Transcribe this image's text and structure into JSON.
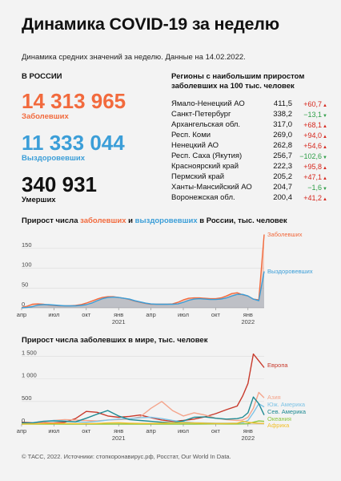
{
  "title": "Динамика COVID-19 за неделю",
  "subtitle": "Динамика средних значений за неделю. Данные на 14.02.2022.",
  "russia": {
    "header": "В РОССИИ",
    "infected_value": "14 313 965",
    "infected_label": "Заболевших",
    "recovered_value": "11 333 044",
    "recovered_label": "Выздоровевших",
    "deaths_value": "340 931",
    "deaths_label": "Умерших"
  },
  "regions": {
    "header_line1": "Регионы с наибольшим приростом",
    "header_line2": "заболевших на 100 тыс. человек",
    "rows": [
      {
        "name": "Ямало-Ненецкий АО",
        "value": "411,5",
        "delta": "+60,7",
        "dir": "up"
      },
      {
        "name": "Санкт-Петербург",
        "value": "338,2",
        "delta": "−13,1",
        "dir": "down"
      },
      {
        "name": "Архангельская обл.",
        "value": "317,0",
        "delta": "+68,1",
        "dir": "up"
      },
      {
        "name": "Респ. Коми",
        "value": "269,0",
        "delta": "+94,0",
        "dir": "up"
      },
      {
        "name": "Ненецкий АО",
        "value": "262,8",
        "delta": "+54,6",
        "dir": "up"
      },
      {
        "name": "Респ. Саха (Якутия)",
        "value": "256,7",
        "delta": "−102,6",
        "dir": "down"
      },
      {
        "name": "Красноярский край",
        "value": "222,3",
        "delta": "+95,8",
        "dir": "up"
      },
      {
        "name": "Пермский край",
        "value": "205,2",
        "delta": "+47,1",
        "dir": "up"
      },
      {
        "name": "Ханты-Мансийский АО",
        "value": "204,7",
        "delta": "−1,6",
        "dir": "down"
      },
      {
        "name": "Воронежская обл.",
        "value": "200,4",
        "delta": "+41,2",
        "dir": "up"
      }
    ]
  },
  "chart1_title": {
    "part1": "Прирост числа ",
    "part2": "заболевших",
    "part3": " и ",
    "part4": "выздоровевших",
    "part5": " в России, тыс. человек"
  },
  "chart2_title": "Прирост числа заболевших в мире, тыс. человек",
  "footer": "© ТАСС, 2022. Источники: стопкоронавирус.рф, Росстат, Our World In Data.",
  "colors": {
    "infected": "#f26a3d",
    "recovered": "#3b9ed8",
    "europe": "#c83a2c",
    "asia": "#f4a58c",
    "south_america": "#7fc4e6",
    "north_america": "#1f8a93",
    "oceania": "#8cc63e",
    "africa": "#f2c12e"
  },
  "chart_data": [
    {
      "type": "area",
      "title": "Прирост числа заболевших и выздоровевших в России, тыс. человек",
      "x_unit": "месяцы, 2020–2022",
      "x_start": "2020-04",
      "x_end": "2022-02",
      "x_ticks": [
        "апр",
        "июл",
        "окт",
        "янв",
        "апр",
        "июл",
        "окт",
        "янв"
      ],
      "year_labels": [
        "2021",
        "2022"
      ],
      "ylim": [
        0,
        190
      ],
      "y_ticks": [
        "0",
        "50",
        "100",
        "150"
      ],
      "series": [
        {
          "name": "Заболевших",
          "x": [
            0,
            0.5,
            1,
            1.5,
            2,
            2.5,
            3,
            3.5,
            4,
            4.5,
            5,
            5.5,
            6,
            6.5,
            7,
            7.5,
            8,
            8.5,
            9,
            9.5,
            10,
            10.5,
            11,
            11.5,
            12,
            12.5,
            13,
            13.5,
            14,
            14.5,
            15,
            15.5,
            16,
            16.5,
            17,
            17.5,
            18,
            18.5,
            19,
            19.5,
            20,
            20.5,
            21,
            21.5,
            22,
            22.5
          ],
          "values": [
            1,
            4,
            9,
            10,
            9,
            7,
            6,
            5,
            5,
            5,
            6,
            8,
            12,
            17,
            22,
            26,
            28,
            28,
            26,
            24,
            21,
            17,
            14,
            11,
            9,
            9,
            9,
            9,
            10,
            14,
            20,
            24,
            25,
            25,
            24,
            23,
            23,
            25,
            30,
            36,
            38,
            33,
            30,
            22,
            20,
            185
          ]
        },
        {
          "name": "Выздоровевших",
          "x": [
            0,
            0.5,
            1,
            1.5,
            2,
            2.5,
            3,
            3.5,
            4,
            4.5,
            5,
            5.5,
            6,
            6.5,
            7,
            7.5,
            8,
            8.5,
            9,
            9.5,
            10,
            10.5,
            11,
            11.5,
            12,
            12.5,
            13,
            13.5,
            14,
            14.5,
            15,
            15.5,
            16,
            16.5,
            17,
            17.5,
            18,
            18.5,
            19,
            19.5,
            20,
            20.5,
            21,
            21.5,
            22,
            22.5
          ],
          "values": [
            0,
            1,
            3,
            7,
            8,
            8,
            7,
            6,
            5,
            5,
            5,
            6,
            8,
            12,
            18,
            23,
            26,
            27,
            26,
            24,
            22,
            18,
            15,
            12,
            10,
            9,
            9,
            9,
            9,
            10,
            14,
            19,
            22,
            23,
            22,
            21,
            21,
            22,
            25,
            30,
            34,
            34,
            30,
            22,
            18,
            92
          ]
        }
      ]
    },
    {
      "type": "line",
      "title": "Прирост числа заболевших в мире, тыс. человек",
      "x_start": "2020-04",
      "x_end": "2022-02",
      "x_ticks": [
        "апр",
        "июл",
        "окт",
        "янв",
        "апр",
        "июл",
        "окт",
        "янв"
      ],
      "year_labels": [
        "2021",
        "2022"
      ],
      "ylim": [
        0,
        1650
      ],
      "y_ticks": [
        "0",
        "500",
        "1 000",
        "1 500"
      ],
      "series": [
        {
          "name": "Европа",
          "x": [
            0,
            1,
            2,
            3,
            4,
            5,
            6,
            7,
            8,
            9,
            10,
            11,
            12,
            13,
            14,
            15,
            16,
            17,
            18,
            19,
            20,
            20.5,
            21,
            21.5,
            22,
            22.5
          ],
          "values": [
            40,
            30,
            20,
            25,
            40,
            120,
            280,
            260,
            180,
            150,
            170,
            200,
            140,
            90,
            60,
            80,
            110,
            160,
            230,
            320,
            400,
            620,
            900,
            1550,
            1400,
            1250
          ]
        },
        {
          "name": "Азия",
          "x": [
            0,
            1,
            2,
            3,
            4,
            5,
            6,
            7,
            8,
            9,
            10,
            11,
            12,
            13,
            14,
            15,
            16,
            17,
            18,
            19,
            20,
            20.5,
            21,
            21.5,
            22,
            22.5
          ],
          "values": [
            10,
            20,
            40,
            80,
            100,
            90,
            80,
            70,
            90,
            100,
            110,
            160,
            350,
            500,
            300,
            180,
            250,
            200,
            130,
            100,
            80,
            90,
            150,
            350,
            700,
            580
          ]
        },
        {
          "name": "Юж. Америка",
          "x": [
            0,
            1,
            2,
            3,
            4,
            5,
            6,
            7,
            8,
            9,
            10,
            11,
            12,
            13,
            14,
            15,
            16,
            17,
            18,
            19,
            20,
            20.5,
            21,
            21.5,
            22,
            22.5
          ],
          "values": [
            5,
            30,
            60,
            80,
            70,
            50,
            40,
            60,
            90,
            110,
            120,
            140,
            150,
            120,
            80,
            50,
            30,
            25,
            20,
            20,
            20,
            30,
            80,
            250,
            450,
            380
          ]
        },
        {
          "name": "Сев. Америка",
          "x": [
            0,
            1,
            2,
            3,
            4,
            5,
            6,
            7,
            8,
            9,
            10,
            11,
            12,
            13,
            14,
            15,
            16,
            17,
            18,
            19,
            20,
            20.5,
            21,
            21.5,
            22,
            22.5
          ],
          "values": [
            30,
            25,
            60,
            70,
            60,
            50,
            130,
            220,
            300,
            180,
            100,
            80,
            60,
            40,
            30,
            70,
            150,
            160,
            130,
            110,
            120,
            150,
            250,
            600,
            450,
            200
          ]
        },
        {
          "name": "Океания",
          "x": [
            0,
            1,
            2,
            3,
            4,
            5,
            6,
            7,
            8,
            9,
            10,
            11,
            12,
            13,
            14,
            15,
            16,
            17,
            18,
            19,
            20,
            20.5,
            21,
            21.5,
            22,
            22.5
          ],
          "values": [
            0,
            0,
            0,
            0,
            0,
            0,
            0,
            0,
            0,
            0,
            0,
            0,
            0,
            0,
            0,
            0,
            0,
            2,
            3,
            2,
            2,
            3,
            10,
            40,
            70,
            60
          ]
        },
        {
          "name": "Африка",
          "x": [
            0,
            1,
            2,
            3,
            4,
            5,
            6,
            7,
            8,
            9,
            10,
            11,
            12,
            13,
            14,
            15,
            16,
            17,
            18,
            19,
            20,
            20.5,
            21,
            21.5,
            22,
            22.5
          ],
          "values": [
            2,
            5,
            10,
            15,
            12,
            10,
            10,
            15,
            25,
            30,
            20,
            15,
            15,
            20,
            25,
            30,
            25,
            20,
            15,
            15,
            20,
            60,
            40,
            25,
            20,
            15
          ]
        }
      ]
    }
  ]
}
